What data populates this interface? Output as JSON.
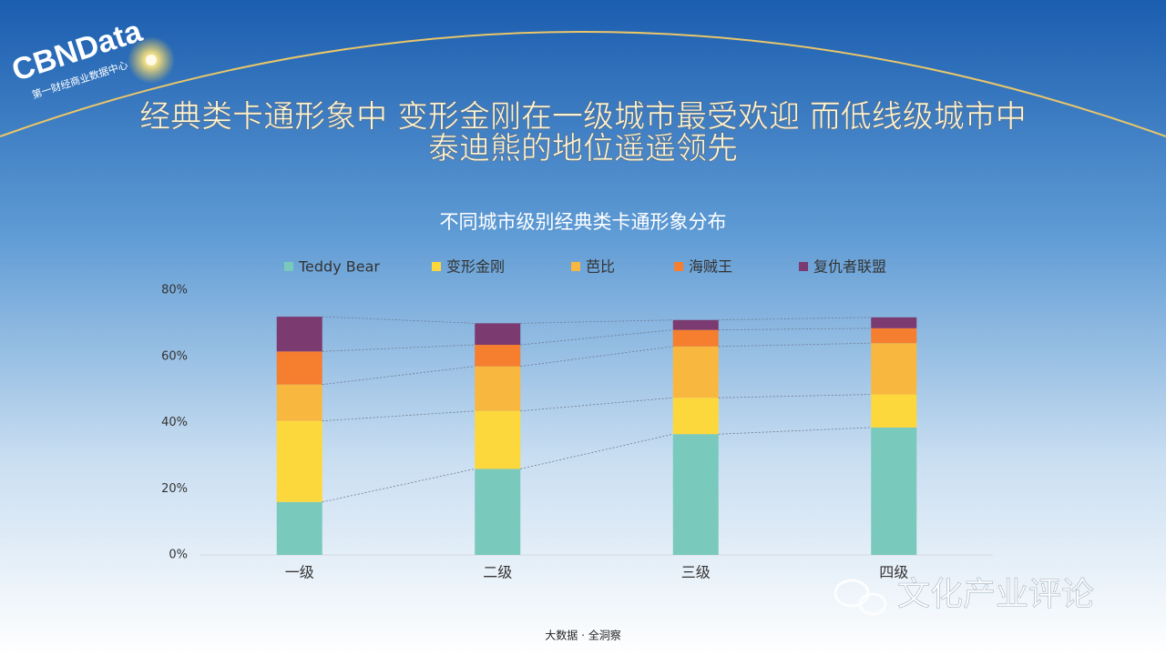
{
  "logo": {
    "name": "CBNData",
    "subtitle": "第一财经商业数据中心"
  },
  "headline": [
    "经典类卡通形象中 变形金刚在一级城市最受欢迎 而低线级城市中",
    "泰迪熊的地位遥遥领先"
  ],
  "chart_data": {
    "type": "stacked-bar",
    "title": "不同城市级别经典类卡通形象分布",
    "categories": [
      "一级",
      "二级",
      "三级",
      "四级"
    ],
    "series": [
      {
        "name": "Teddy Bear",
        "color": "#79c9bd",
        "values": [
          16,
          26,
          36.5,
          38.5
        ]
      },
      {
        "name": "变形金刚",
        "color": "#fdd83c",
        "values": [
          24.5,
          17.5,
          11,
          10
        ]
      },
      {
        "name": "芭比",
        "color": "#f8b840",
        "values": [
          11,
          13.5,
          15.5,
          15.5
        ]
      },
      {
        "name": "海贼王",
        "color": "#f57e2f",
        "values": [
          10,
          6.5,
          5,
          4.5
        ]
      },
      {
        "name": "复仇者联盟",
        "color": "#7b3a70",
        "values": [
          10.5,
          6.5,
          3,
          3.3
        ]
      }
    ],
    "ylim": [
      0,
      80
    ],
    "yticks": [
      {
        "value": 0,
        "label": "0%"
      },
      {
        "value": 20,
        "label": "20%"
      },
      {
        "value": 40,
        "label": "40%"
      },
      {
        "value": 60,
        "label": "60%"
      },
      {
        "value": 80,
        "label": "80%"
      }
    ],
    "legend": "top"
  },
  "footer": "大数据 · 全洞察",
  "watermark": "文化产业评论"
}
